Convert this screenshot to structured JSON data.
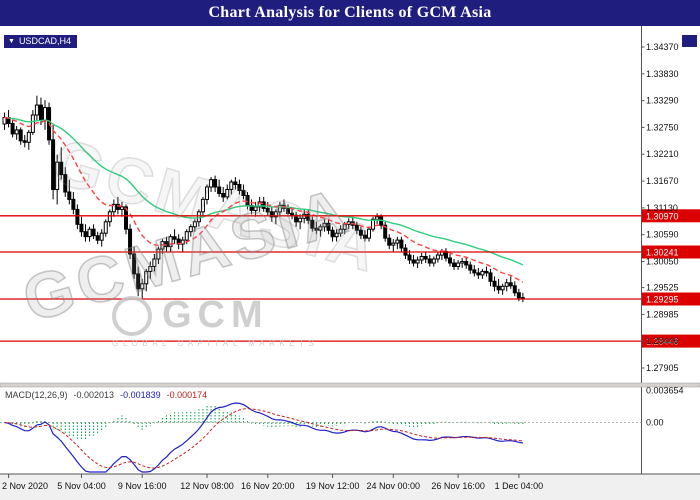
{
  "banner": {
    "title": "Chart Analysis for Clients of GCM Asia",
    "bg": "#1f1d7e"
  },
  "watermark": {
    "brand": "GCMASIA",
    "logo_text": "GCM",
    "logo_subtext": "GLOBAL CAPITAL MARKETS"
  },
  "chart_data": {
    "type": "candlestick",
    "symbol": "USDCAD",
    "timeframe": "H4",
    "symbol_label": "USDCAD,H4",
    "ylim": [
      1.276,
      1.348
    ],
    "grid": false,
    "colors": {
      "level_red": "#dd0000",
      "candle_up": "#ffffff",
      "candle_down": "#000000",
      "candle_border": "#000000"
    },
    "y_axis_ticks": [
      "1.34370",
      "1.33830",
      "1.33290",
      "1.32750",
      "1.32210",
      "1.31670",
      "1.31130",
      "1.30590",
      "1.30050",
      "1.29525",
      "1.28985",
      "1.28446",
      "1.27905"
    ],
    "x_axis_labels": [
      {
        "text": "2 Nov 2020",
        "index": 1
      },
      {
        "text": "5 Nov 04:00",
        "index": 19
      },
      {
        "text": "9 Nov 16:00",
        "index": 34
      },
      {
        "text": "12 Nov 08:00",
        "index": 50
      },
      {
        "text": "16 Nov 20:00",
        "index": 65
      },
      {
        "text": "19 Nov 12:00",
        "index": 81
      },
      {
        "text": "24 Nov 00:00",
        "index": 96
      },
      {
        "text": "26 Nov 16:00",
        "index": 112
      },
      {
        "text": "1 Dec 04:00",
        "index": 127
      }
    ],
    "horizontal_lines": [
      {
        "price": 1.3097,
        "label": "1.30970"
      },
      {
        "price": 1.30241,
        "label": "1.30241"
      },
      {
        "price": 1.29295,
        "label": "1.29295"
      },
      {
        "price": 1.28446,
        "label": "1.28446"
      }
    ],
    "moving_averages": [
      {
        "name": "ma-slow-green",
        "type": "ema",
        "period": 40,
        "color": "#2fcf7e"
      },
      {
        "name": "ma-fast-red",
        "type": "ema",
        "period": 16,
        "color": "#ff4040",
        "dash": "5,3"
      }
    ],
    "macd": {
      "label": "MACD(12,26,9)",
      "params": [
        12,
        26,
        9
      ],
      "values": [
        {
          "text": "-0.002013",
          "color": "#3a3a3a"
        },
        {
          "text": "-0.001839",
          "color": "#2020c0"
        },
        {
          "text": "-0.000174",
          "color": "#c02020"
        }
      ],
      "axis_ticks": [
        {
          "text": "0.003654",
          "value": 0.003654
        },
        {
          "text": "0.00",
          "value": 0
        }
      ],
      "colors": {
        "histogram": "#00a040",
        "macd_line": "#2020c8",
        "signal_line": "#c82020",
        "zero_line": "#999999"
      }
    },
    "candles": [
      [
        1.3282,
        1.3305,
        1.327,
        1.3295
      ],
      [
        1.3295,
        1.331,
        1.3275,
        1.3283
      ],
      [
        1.3283,
        1.329,
        1.3255,
        1.3262
      ],
      [
        1.3262,
        1.3278,
        1.325,
        1.327
      ],
      [
        1.327,
        1.3275,
        1.324,
        1.3248
      ],
      [
        1.3248,
        1.326,
        1.3235,
        1.3245
      ],
      [
        1.3245,
        1.327,
        1.323,
        1.3265
      ],
      [
        1.3265,
        1.331,
        1.326,
        1.33
      ],
      [
        1.33,
        1.3339,
        1.329,
        1.332
      ],
      [
        1.332,
        1.3335,
        1.328,
        1.329
      ],
      [
        1.329,
        1.333,
        1.327,
        1.3315
      ],
      [
        1.3315,
        1.3325,
        1.324,
        1.325
      ],
      [
        1.325,
        1.328,
        1.313,
        1.315
      ],
      [
        1.315,
        1.322,
        1.312,
        1.3205
      ],
      [
        1.3205,
        1.3235,
        1.317,
        1.318
      ],
      [
        1.318,
        1.3195,
        1.3135,
        1.3145
      ],
      [
        1.3145,
        1.317,
        1.312,
        1.313
      ],
      [
        1.313,
        1.3145,
        1.31,
        1.311
      ],
      [
        1.311,
        1.312,
        1.307,
        1.308
      ],
      [
        1.308,
        1.3095,
        1.3055,
        1.3065
      ],
      [
        1.3065,
        1.308,
        1.3045,
        1.3055
      ],
      [
        1.3055,
        1.3075,
        1.3045,
        1.307
      ],
      [
        1.307,
        1.308,
        1.305,
        1.3057
      ],
      [
        1.3057,
        1.3065,
        1.304,
        1.3048
      ],
      [
        1.3048,
        1.307,
        1.3035,
        1.3062
      ],
      [
        1.3062,
        1.309,
        1.3055,
        1.3085
      ],
      [
        1.3085,
        1.311,
        1.3075,
        1.3105
      ],
      [
        1.3105,
        1.313,
        1.3095,
        1.312
      ],
      [
        1.312,
        1.3135,
        1.31,
        1.311
      ],
      [
        1.311,
        1.3125,
        1.3095,
        1.3115
      ],
      [
        1.3115,
        1.312,
        1.306,
        1.307
      ],
      [
        1.307,
        1.308,
        1.301,
        1.302
      ],
      [
        1.302,
        1.3035,
        1.297,
        1.298
      ],
      [
        1.298,
        1.2995,
        1.2935,
        1.295
      ],
      [
        1.295,
        1.297,
        1.293,
        1.296
      ],
      [
        1.296,
        1.299,
        1.2945,
        1.2985
      ],
      [
        1.2985,
        1.3005,
        1.297,
        1.2995
      ],
      [
        1.2995,
        1.302,
        1.2985,
        1.301
      ],
      [
        1.301,
        1.3035,
        1.3,
        1.303
      ],
      [
        1.303,
        1.305,
        1.302,
        1.3045
      ],
      [
        1.3045,
        1.3055,
        1.3025,
        1.3035
      ],
      [
        1.3035,
        1.306,
        1.3025,
        1.3055
      ],
      [
        1.3055,
        1.307,
        1.304,
        1.305
      ],
      [
        1.305,
        1.306,
        1.303,
        1.304
      ],
      [
        1.304,
        1.3055,
        1.3025,
        1.3048
      ],
      [
        1.3048,
        1.307,
        1.304,
        1.3065
      ],
      [
        1.3065,
        1.308,
        1.3055,
        1.3075
      ],
      [
        1.3075,
        1.309,
        1.3065,
        1.3085
      ],
      [
        1.3085,
        1.311,
        1.3075,
        1.3105
      ],
      [
        1.3105,
        1.3135,
        1.3095,
        1.313
      ],
      [
        1.313,
        1.316,
        1.312,
        1.3155
      ],
      [
        1.3155,
        1.3175,
        1.3145,
        1.317
      ],
      [
        1.317,
        1.3178,
        1.3145,
        1.3155
      ],
      [
        1.3155,
        1.317,
        1.3135,
        1.3142
      ],
      [
        1.3142,
        1.3155,
        1.3125,
        1.3135
      ],
      [
        1.3135,
        1.316,
        1.313,
        1.315
      ],
      [
        1.315,
        1.317,
        1.314,
        1.3165
      ],
      [
        1.3165,
        1.3175,
        1.315,
        1.316
      ],
      [
        1.316,
        1.317,
        1.314,
        1.3148
      ],
      [
        1.3148,
        1.316,
        1.313,
        1.3138
      ],
      [
        1.3138,
        1.3145,
        1.311,
        1.3118
      ],
      [
        1.3118,
        1.313,
        1.31,
        1.3108
      ],
      [
        1.3108,
        1.3125,
        1.3095,
        1.3115
      ],
      [
        1.3115,
        1.3135,
        1.3105,
        1.3125
      ],
      [
        1.3125,
        1.3135,
        1.3105,
        1.3112
      ],
      [
        1.3112,
        1.3125,
        1.3098,
        1.3105
      ],
      [
        1.3105,
        1.3115,
        1.3085,
        1.3095
      ],
      [
        1.3095,
        1.311,
        1.308,
        1.3105
      ],
      [
        1.3105,
        1.3125,
        1.3095,
        1.3118
      ],
      [
        1.3118,
        1.313,
        1.3105,
        1.3112
      ],
      [
        1.3112,
        1.312,
        1.3095,
        1.3102
      ],
      [
        1.3102,
        1.3115,
        1.309,
        1.3098
      ],
      [
        1.3098,
        1.3105,
        1.3075,
        1.3085
      ],
      [
        1.3085,
        1.31,
        1.307,
        1.3092
      ],
      [
        1.3092,
        1.311,
        1.3082,
        1.31
      ],
      [
        1.31,
        1.3108,
        1.308,
        1.3088
      ],
      [
        1.3088,
        1.3095,
        1.3065,
        1.3072
      ],
      [
        1.3072,
        1.3085,
        1.306,
        1.3068
      ],
      [
        1.3068,
        1.308,
        1.3055,
        1.3075
      ],
      [
        1.3075,
        1.309,
        1.3065,
        1.3082
      ],
      [
        1.3082,
        1.309,
        1.306,
        1.3068
      ],
      [
        1.3068,
        1.3075,
        1.3045,
        1.3055
      ],
      [
        1.3055,
        1.307,
        1.3045,
        1.3062
      ],
      [
        1.3062,
        1.3078,
        1.3055,
        1.307
      ],
      [
        1.307,
        1.3085,
        1.306,
        1.308
      ],
      [
        1.308,
        1.3092,
        1.307,
        1.3085
      ],
      [
        1.3085,
        1.3095,
        1.307,
        1.3078
      ],
      [
        1.3078,
        1.3085,
        1.306,
        1.3068
      ],
      [
        1.3068,
        1.3075,
        1.305,
        1.3058
      ],
      [
        1.3058,
        1.3068,
        1.3045,
        1.3052
      ],
      [
        1.3052,
        1.3075,
        1.3045,
        1.307
      ],
      [
        1.307,
        1.3095,
        1.3065,
        1.309
      ],
      [
        1.309,
        1.3102,
        1.308,
        1.3095
      ],
      [
        1.3095,
        1.31,
        1.307,
        1.3078
      ],
      [
        1.3078,
        1.3085,
        1.3045,
        1.3052
      ],
      [
        1.3052,
        1.306,
        1.303,
        1.3038
      ],
      [
        1.3038,
        1.305,
        1.3025,
        1.3042
      ],
      [
        1.3042,
        1.3055,
        1.303,
        1.3048
      ],
      [
        1.3048,
        1.3055,
        1.3025,
        1.3032
      ],
      [
        1.3032,
        1.304,
        1.301,
        1.3018
      ],
      [
        1.3018,
        1.3028,
        1.3,
        1.3008
      ],
      [
        1.3008,
        1.3018,
        1.2995,
        1.3002
      ],
      [
        1.3002,
        1.3015,
        1.2992,
        1.3008
      ],
      [
        1.3008,
        1.3022,
        1.3,
        1.3015
      ],
      [
        1.3015,
        1.3025,
        1.3002,
        1.301
      ],
      [
        1.301,
        1.3018,
        1.2995,
        1.3002
      ],
      [
        1.3002,
        1.3015,
        1.2995,
        1.301
      ],
      [
        1.301,
        1.3025,
        1.3003,
        1.3018
      ],
      [
        1.3018,
        1.303,
        1.3008,
        1.3025
      ],
      [
        1.3025,
        1.3032,
        1.3005,
        1.3012
      ],
      [
        1.3012,
        1.302,
        1.2995,
        1.3002
      ],
      [
        1.3002,
        1.301,
        1.2988,
        1.2995
      ],
      [
        1.2995,
        1.3008,
        1.2988,
        1.3002
      ],
      [
        1.3002,
        1.3012,
        1.2992,
        1.3005
      ],
      [
        1.3005,
        1.3015,
        1.299,
        1.2998
      ],
      [
        1.2998,
        1.3005,
        1.298,
        1.2988
      ],
      [
        1.2988,
        1.2998,
        1.2975,
        1.2982
      ],
      [
        1.2982,
        1.2992,
        1.297,
        1.2978
      ],
      [
        1.2978,
        1.299,
        1.297,
        1.2985
      ],
      [
        1.2985,
        1.2995,
        1.2975,
        1.2982
      ],
      [
        1.2982,
        1.299,
        1.2955,
        1.2965
      ],
      [
        1.2965,
        1.2975,
        1.2945,
        1.2955
      ],
      [
        1.2955,
        1.297,
        1.294,
        1.2948
      ],
      [
        1.2948,
        1.296,
        1.2938,
        1.2955
      ],
      [
        1.2955,
        1.297,
        1.2945,
        1.2962
      ],
      [
        1.2962,
        1.2975,
        1.295,
        1.2956
      ],
      [
        1.2956,
        1.2965,
        1.2935,
        1.2942
      ],
      [
        1.2942,
        1.295,
        1.2925,
        1.2932
      ],
      [
        1.2932,
        1.2942,
        1.2923,
        1.29295
      ]
    ]
  }
}
